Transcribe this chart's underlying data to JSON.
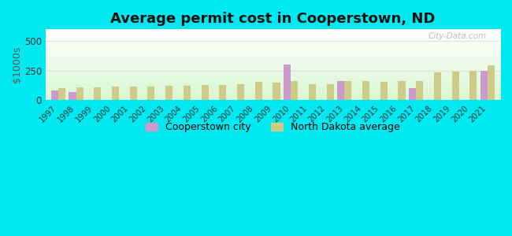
{
  "title": "Average permit cost in Cooperstown, ND",
  "ylabel": "$1000s",
  "years": [
    1997,
    1998,
    1999,
    2000,
    2001,
    2002,
    2003,
    2004,
    2005,
    2006,
    2007,
    2008,
    2009,
    2010,
    2011,
    2012,
    2013,
    2014,
    2015,
    2016,
    2017,
    2018,
    2019,
    2020,
    2021
  ],
  "city_values": [
    80,
    70,
    0,
    0,
    0,
    0,
    0,
    0,
    0,
    0,
    0,
    0,
    0,
    300,
    0,
    0,
    160,
    0,
    0,
    0,
    100,
    0,
    0,
    0,
    250
  ],
  "state_values": [
    105,
    110,
    110,
    115,
    115,
    118,
    120,
    122,
    128,
    130,
    138,
    152,
    148,
    162,
    132,
    138,
    162,
    162,
    158,
    162,
    162,
    232,
    242,
    248,
    295
  ],
  "city_color": "#cc99cc",
  "state_color": "#cccc88",
  "ylim": [
    0,
    600
  ],
  "yticks": [
    0,
    250,
    500
  ],
  "outer_bg": "#00e8f0",
  "bar_width": 0.4,
  "legend_city": "Cooperstown city",
  "legend_state": "North Dakota average",
  "grid_color": "#dddddd",
  "grid_alpha": 0.9,
  "watermark": "City-Data.com"
}
